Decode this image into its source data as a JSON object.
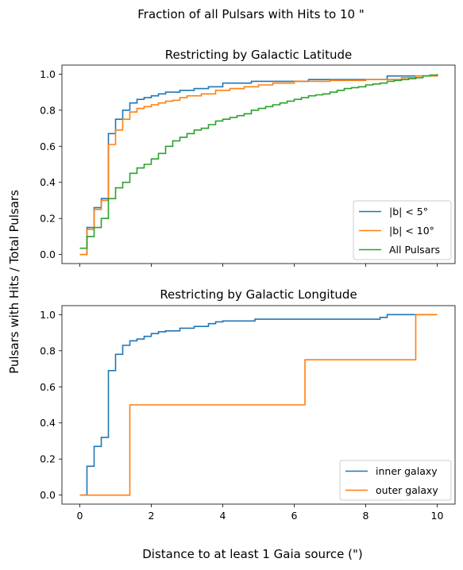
{
  "figure": {
    "suptitle": "Fraction of all Pulsars with Hits to 10 \"",
    "supylabel": "Pulsars with Hits / Total Pulsars",
    "supxlabel": "Distance to at least 1 Gaia source (\")"
  },
  "chart_data": [
    {
      "type": "line",
      "drawstyle": "step",
      "title": "Restricting by Galactic Latitude",
      "xlim": [
        -0.5,
        10.5
      ],
      "ylim": [
        -0.05,
        1.05
      ],
      "xticks": [
        0,
        2,
        4,
        6,
        8,
        10
      ],
      "xtick_labels_visible": false,
      "yticks": [
        0.0,
        0.2,
        0.4,
        0.6,
        0.8,
        1.0
      ],
      "ytick_labels": [
        "0.0",
        "0.2",
        "0.4",
        "0.6",
        "0.8",
        "1.0"
      ],
      "grid": false,
      "legend": "lower right",
      "series": [
        {
          "name": "|b| < 5°",
          "color": "#1f77b4",
          "x": [
            0.0,
            0.2,
            0.4,
            0.6,
            0.8,
            1.0,
            1.2,
            1.4,
            1.6,
            1.8,
            2.0,
            2.2,
            2.4,
            2.8,
            3.2,
            3.6,
            4.0,
            4.8,
            6.4,
            8.6,
            10.0
          ],
          "y": [
            0.0,
            0.15,
            0.26,
            0.31,
            0.67,
            0.75,
            0.8,
            0.84,
            0.86,
            0.87,
            0.88,
            0.89,
            0.9,
            0.91,
            0.92,
            0.93,
            0.95,
            0.96,
            0.97,
            0.99,
            1.0
          ]
        },
        {
          "name": "|b| < 10°",
          "color": "#ff7f0e",
          "x": [
            0.0,
            0.2,
            0.4,
            0.6,
            0.8,
            1.0,
            1.2,
            1.4,
            1.6,
            1.8,
            2.0,
            2.2,
            2.4,
            2.6,
            2.8,
            3.0,
            3.4,
            3.8,
            4.2,
            4.6,
            5.0,
            5.4,
            6.0,
            7.0,
            8.0,
            9.0,
            9.4,
            10.0
          ],
          "y": [
            0.0,
            0.14,
            0.25,
            0.3,
            0.61,
            0.69,
            0.75,
            0.79,
            0.81,
            0.82,
            0.83,
            0.84,
            0.85,
            0.855,
            0.87,
            0.88,
            0.89,
            0.91,
            0.92,
            0.93,
            0.94,
            0.95,
            0.96,
            0.965,
            0.97,
            0.98,
            0.99,
            1.0
          ]
        },
        {
          "name": "All Pulsars",
          "color": "#2ca02c",
          "x": [
            0.0,
            0.2,
            0.4,
            0.6,
            0.8,
            1.0,
            1.2,
            1.4,
            1.6,
            1.8,
            2.0,
            2.2,
            2.4,
            2.6,
            2.8,
            3.0,
            3.2,
            3.4,
            3.6,
            3.8,
            4.0,
            4.2,
            4.4,
            4.6,
            4.8,
            5.0,
            5.2,
            5.4,
            5.6,
            5.8,
            6.0,
            6.2,
            6.4,
            6.6,
            6.8,
            7.0,
            7.2,
            7.4,
            7.6,
            7.8,
            8.0,
            8.2,
            8.4,
            8.6,
            8.8,
            9.0,
            9.2,
            9.4,
            9.6,
            9.8,
            10.0
          ],
          "y": [
            0.035,
            0.1,
            0.15,
            0.2,
            0.31,
            0.37,
            0.4,
            0.45,
            0.48,
            0.5,
            0.53,
            0.56,
            0.6,
            0.63,
            0.65,
            0.67,
            0.69,
            0.7,
            0.72,
            0.74,
            0.75,
            0.76,
            0.77,
            0.78,
            0.8,
            0.81,
            0.82,
            0.83,
            0.84,
            0.85,
            0.86,
            0.87,
            0.88,
            0.885,
            0.89,
            0.9,
            0.91,
            0.92,
            0.925,
            0.93,
            0.94,
            0.945,
            0.95,
            0.96,
            0.965,
            0.97,
            0.975,
            0.98,
            0.99,
            0.995,
            1.0
          ]
        }
      ]
    },
    {
      "type": "line",
      "drawstyle": "step",
      "title": "Restricting by Galactic Longitude",
      "xlim": [
        -0.5,
        10.5
      ],
      "ylim": [
        -0.05,
        1.05
      ],
      "xticks": [
        0,
        2,
        4,
        6,
        8,
        10
      ],
      "xtick_labels": [
        "0",
        "2",
        "4",
        "6",
        "8",
        "10"
      ],
      "yticks": [
        0.0,
        0.2,
        0.4,
        0.6,
        0.8,
        1.0
      ],
      "ytick_labels": [
        "0.0",
        "0.2",
        "0.4",
        "0.6",
        "0.8",
        "1.0"
      ],
      "grid": false,
      "legend": "lower right",
      "series": [
        {
          "name": "inner galaxy",
          "color": "#1f77b4",
          "x": [
            0.0,
            0.2,
            0.4,
            0.6,
            0.8,
            1.0,
            1.2,
            1.4,
            1.6,
            1.8,
            2.0,
            2.2,
            2.4,
            2.8,
            3.2,
            3.6,
            3.8,
            4.0,
            4.9,
            8.4,
            8.6,
            10.0
          ],
          "y": [
            0.0,
            0.16,
            0.27,
            0.32,
            0.69,
            0.78,
            0.83,
            0.855,
            0.865,
            0.88,
            0.895,
            0.905,
            0.91,
            0.925,
            0.935,
            0.95,
            0.96,
            0.965,
            0.975,
            0.985,
            1.0,
            1.0
          ]
        },
        {
          "name": "outer galaxy",
          "color": "#ff7f0e",
          "x": [
            0.0,
            1.4,
            6.3,
            9.4,
            10.0
          ],
          "y": [
            0.0,
            0.5,
            0.75,
            1.0,
            1.0
          ]
        }
      ]
    }
  ]
}
